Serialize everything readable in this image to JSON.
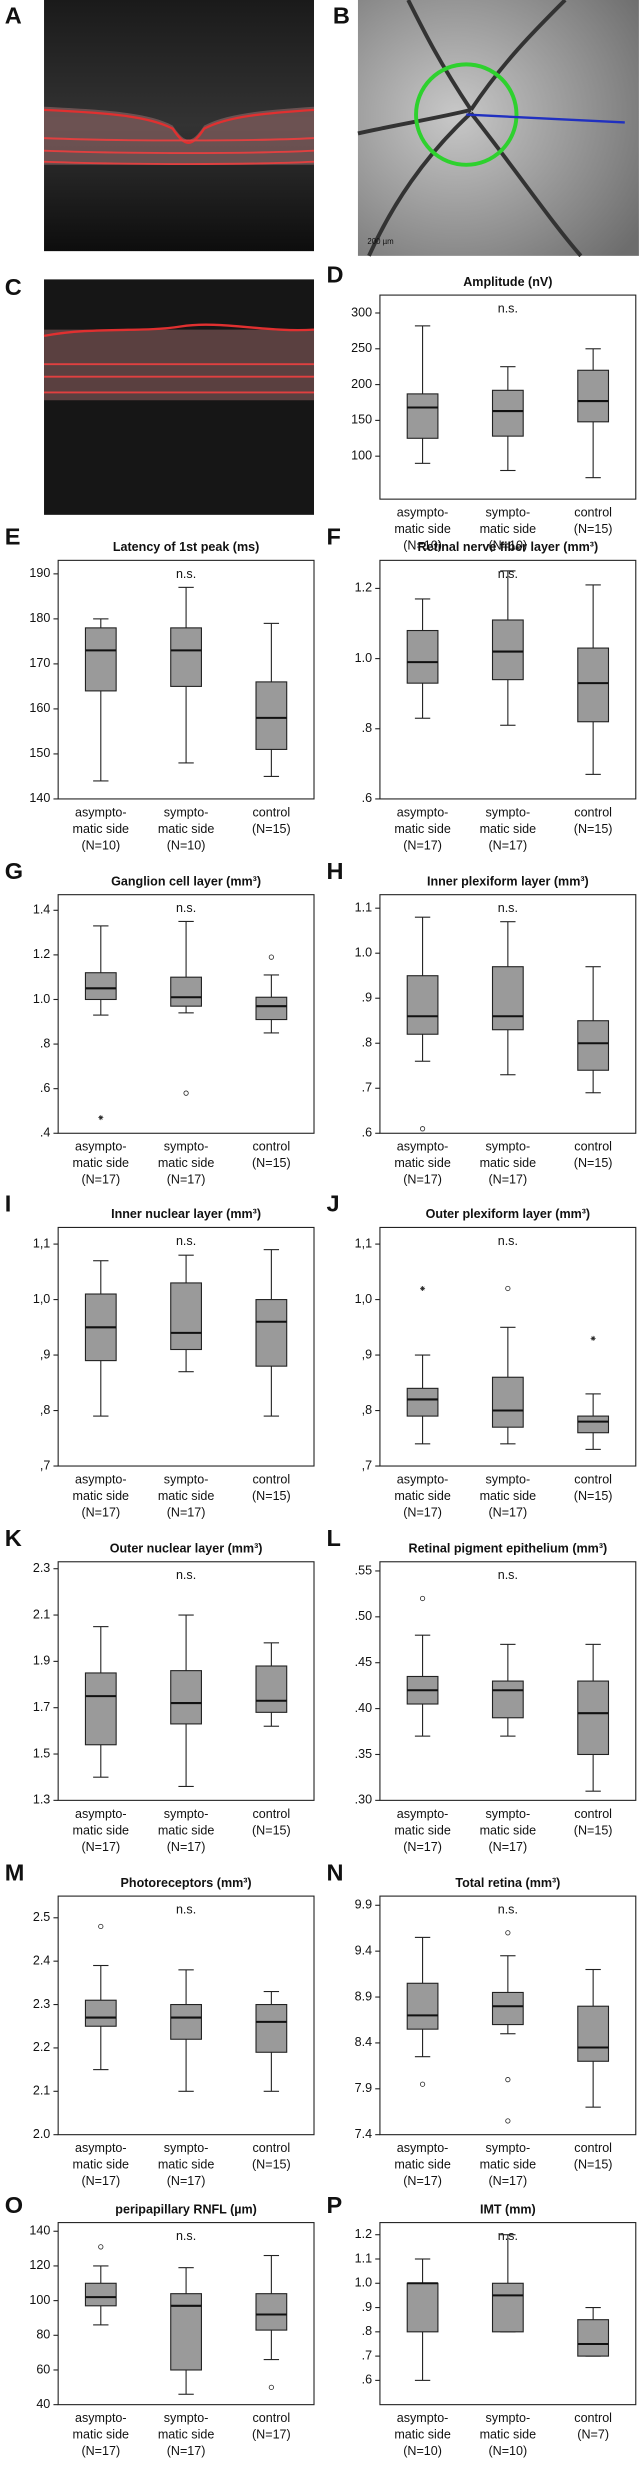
{
  "images": [
    {
      "label": "A"
    },
    {
      "label": "B",
      "scale_label": "200 µm"
    },
    {
      "label": "C"
    }
  ],
  "chart_data": [
    {
      "type": "box",
      "panel_label": "D",
      "title": "Amplitude (nV)",
      "annotation": "n.s.",
      "color": "#9a9a9a",
      "ylim": [
        40,
        325
      ],
      "yticks": [
        100,
        150,
        200,
        250,
        300
      ],
      "categories": [
        [
          "asympto-",
          "matic side",
          "(N=10)"
        ],
        [
          "sympto-",
          "matic side",
          "(N=10)"
        ],
        [
          "control",
          "(N=15)"
        ]
      ],
      "boxes": [
        {
          "whisker_low": 90,
          "q1": 125,
          "median": 168,
          "q3": 187,
          "whisker_high": 282,
          "outliers": []
        },
        {
          "whisker_low": 80,
          "q1": 128,
          "median": 163,
          "q3": 192,
          "whisker_high": 225,
          "outliers": []
        },
        {
          "whisker_low": 70,
          "q1": 148,
          "median": 177,
          "q3": 220,
          "whisker_high": 250,
          "outliers": []
        }
      ]
    },
    {
      "type": "box",
      "panel_label": "E",
      "title": "Latency of 1st peak (ms)",
      "annotation": "n.s.",
      "color": "#9a9a9a",
      "ylim": [
        140,
        193
      ],
      "yticks": [
        140,
        150,
        160,
        170,
        180,
        190
      ],
      "categories": [
        [
          "asympto-",
          "matic side",
          "(N=10)"
        ],
        [
          "sympto-",
          "matic side",
          "(N=10)"
        ],
        [
          "control",
          "(N=15)"
        ]
      ],
      "boxes": [
        {
          "whisker_low": 144,
          "q1": 164,
          "median": 173,
          "q3": 178,
          "whisker_high": 180,
          "outliers": []
        },
        {
          "whisker_low": 148,
          "q1": 165,
          "median": 173,
          "q3": 178,
          "whisker_high": 187,
          "outliers": []
        },
        {
          "whisker_low": 145,
          "q1": 151,
          "median": 158,
          "q3": 166,
          "whisker_high": 179,
          "outliers": []
        }
      ]
    },
    {
      "type": "box",
      "panel_label": "F",
      "title": "Retinal nerve fiber layer (mm³)",
      "annotation": "n.s.",
      "color": "#9a9a9a",
      "ylim": [
        0.6,
        1.28
      ],
      "yticks": [
        {
          "value": 0.6,
          "label": ".6"
        },
        {
          "value": 0.8,
          "label": ".8"
        },
        {
          "value": 1.0,
          "label": "1.0"
        },
        {
          "value": 1.2,
          "label": "1.2"
        }
      ],
      "categories": [
        [
          "asympto-",
          "matic side",
          "(N=17)"
        ],
        [
          "sympto-",
          "matic side",
          "(N=17)"
        ],
        [
          "control",
          "(N=15)"
        ]
      ],
      "boxes": [
        {
          "whisker_low": 0.83,
          "q1": 0.93,
          "median": 0.99,
          "q3": 1.08,
          "whisker_high": 1.17,
          "outliers": []
        },
        {
          "whisker_low": 0.81,
          "q1": 0.94,
          "median": 1.02,
          "q3": 1.11,
          "whisker_high": 1.25,
          "outliers": []
        },
        {
          "whisker_low": 0.67,
          "q1": 0.82,
          "median": 0.93,
          "q3": 1.03,
          "whisker_high": 1.21,
          "outliers": []
        }
      ]
    },
    {
      "type": "box",
      "panel_label": "G",
      "title": "Ganglion cell layer (mm³)",
      "annotation": "n.s.",
      "color": "#9a9a9a",
      "ylim": [
        0.4,
        1.47
      ],
      "yticks": [
        {
          "value": 0.4,
          "label": ".4"
        },
        {
          "value": 0.6,
          "label": ".6"
        },
        {
          "value": 0.8,
          "label": ".8"
        },
        {
          "value": 1.0,
          "label": "1.0"
        },
        {
          "value": 1.2,
          "label": "1.2"
        },
        {
          "value": 1.4,
          "label": "1.4"
        }
      ],
      "categories": [
        [
          "asympto-",
          "matic side",
          "(N=17)"
        ],
        [
          "sympto-",
          "matic side",
          "(N=17)"
        ],
        [
          "control",
          "(N=15)"
        ]
      ],
      "boxes": [
        {
          "whisker_low": 0.93,
          "q1": 1.0,
          "median": 1.05,
          "q3": 1.12,
          "whisker_high": 1.33,
          "outliers": [
            {
              "value": 0.47,
              "marker": "star"
            }
          ]
        },
        {
          "whisker_low": 0.94,
          "q1": 0.97,
          "median": 1.01,
          "q3": 1.1,
          "whisker_high": 1.35,
          "outliers": [
            {
              "value": 0.58,
              "marker": "circle"
            }
          ]
        },
        {
          "whisker_low": 0.85,
          "q1": 0.91,
          "median": 0.97,
          "q3": 1.01,
          "whisker_high": 1.11,
          "outliers": [
            {
              "value": 1.19,
              "marker": "circle"
            }
          ]
        }
      ]
    },
    {
      "type": "box",
      "panel_label": "H",
      "title": "Inner plexiform layer (mm³)",
      "annotation": "n.s.",
      "color": "#9a9a9a",
      "ylim": [
        0.6,
        1.13
      ],
      "yticks": [
        {
          "value": 0.6,
          "label": ".6"
        },
        {
          "value": 0.7,
          "label": ".7"
        },
        {
          "value": 0.8,
          "label": ".8"
        },
        {
          "value": 0.9,
          "label": ".9"
        },
        {
          "value": 1.0,
          "label": "1.0"
        },
        {
          "value": 1.1,
          "label": "1.1"
        }
      ],
      "categories": [
        [
          "asympto-",
          "matic side",
          "(N=17)"
        ],
        [
          "sympto-",
          "matic side",
          "(N=17)"
        ],
        [
          "control",
          "(N=15)"
        ]
      ],
      "boxes": [
        {
          "whisker_low": 0.76,
          "q1": 0.82,
          "median": 0.86,
          "q3": 0.95,
          "whisker_high": 1.08,
          "outliers": [
            {
              "value": 0.61,
              "marker": "circle"
            }
          ]
        },
        {
          "whisker_low": 0.73,
          "q1": 0.83,
          "median": 0.86,
          "q3": 0.97,
          "whisker_high": 1.07,
          "outliers": []
        },
        {
          "whisker_low": 0.69,
          "q1": 0.74,
          "median": 0.8,
          "q3": 0.85,
          "whisker_high": 0.97,
          "outliers": []
        }
      ]
    },
    {
      "type": "box",
      "panel_label": "I",
      "title": "Inner nuclear layer (mm³)",
      "annotation": "n.s.",
      "color": "#9a9a9a",
      "ylim": [
        0.7,
        1.13
      ],
      "yticks": [
        {
          "value": 0.7,
          "label": ",7"
        },
        {
          "value": 0.8,
          "label": ",8"
        },
        {
          "value": 0.9,
          "label": ",9"
        },
        {
          "value": 1.0,
          "label": "1,0"
        },
        {
          "value": 1.1,
          "label": "1,1"
        }
      ],
      "categories": [
        [
          "asympto-",
          "matic side",
          "(N=17)"
        ],
        [
          "sympto-",
          "matic side",
          "(N=17)"
        ],
        [
          "control",
          "(N=15)"
        ]
      ],
      "boxes": [
        {
          "whisker_low": 0.79,
          "q1": 0.89,
          "median": 0.95,
          "q3": 1.01,
          "whisker_high": 1.07,
          "outliers": []
        },
        {
          "whisker_low": 0.87,
          "q1": 0.91,
          "median": 0.94,
          "q3": 1.03,
          "whisker_high": 1.08,
          "outliers": []
        },
        {
          "whisker_low": 0.79,
          "q1": 0.88,
          "median": 0.96,
          "q3": 1.0,
          "whisker_high": 1.09,
          "outliers": []
        }
      ]
    },
    {
      "type": "box",
      "panel_label": "J",
      "title": "Outer plexiform layer (mm³)",
      "annotation": "n.s.",
      "color": "#9a9a9a",
      "ylim": [
        0.7,
        1.13
      ],
      "yticks": [
        {
          "value": 0.7,
          "label": ",7"
        },
        {
          "value": 0.8,
          "label": ",8"
        },
        {
          "value": 0.9,
          "label": ",9"
        },
        {
          "value": 1.0,
          "label": "1,0"
        },
        {
          "value": 1.1,
          "label": "1,1"
        }
      ],
      "categories": [
        [
          "asympto-",
          "matic side",
          "(N=17)"
        ],
        [
          "sympto-",
          "matic side",
          "(N=17)"
        ],
        [
          "control",
          "(N=15)"
        ]
      ],
      "boxes": [
        {
          "whisker_low": 0.74,
          "q1": 0.79,
          "median": 0.82,
          "q3": 0.84,
          "whisker_high": 0.9,
          "outliers": [
            {
              "value": 1.02,
              "marker": "star"
            }
          ]
        },
        {
          "whisker_low": 0.74,
          "q1": 0.77,
          "median": 0.8,
          "q3": 0.86,
          "whisker_high": 0.95,
          "outliers": [
            {
              "value": 1.02,
              "marker": "circle"
            }
          ]
        },
        {
          "whisker_low": 0.73,
          "q1": 0.76,
          "median": 0.78,
          "q3": 0.79,
          "whisker_high": 0.83,
          "outliers": [
            {
              "value": 0.93,
              "marker": "star"
            }
          ]
        }
      ]
    },
    {
      "type": "box",
      "panel_label": "K",
      "title": "Outer nuclear layer (mm³)",
      "annotation": "n.s.",
      "color": "#9a9a9a",
      "ylim": [
        1.3,
        2.33
      ],
      "yticks": [
        1.3,
        1.5,
        1.7,
        1.9,
        2.1,
        2.3
      ],
      "categories": [
        [
          "asympto-",
          "matic side",
          "(N=17)"
        ],
        [
          "sympto-",
          "matic side",
          "(N=17)"
        ],
        [
          "control",
          "(N=15)"
        ]
      ],
      "boxes": [
        {
          "whisker_low": 1.4,
          "q1": 1.54,
          "median": 1.75,
          "q3": 1.85,
          "whisker_high": 2.05,
          "outliers": []
        },
        {
          "whisker_low": 1.36,
          "q1": 1.63,
          "median": 1.72,
          "q3": 1.86,
          "whisker_high": 2.1,
          "outliers": []
        },
        {
          "whisker_low": 1.62,
          "q1": 1.68,
          "median": 1.73,
          "q3": 1.88,
          "whisker_high": 1.98,
          "outliers": []
        }
      ]
    },
    {
      "type": "box",
      "panel_label": "L",
      "title": "Retinal pigment epithelium (mm³)",
      "annotation": "n.s.",
      "color": "#9a9a9a",
      "ylim": [
        0.3,
        0.56
      ],
      "yticks": [
        {
          "value": 0.3,
          "label": ".30"
        },
        {
          "value": 0.35,
          "label": ".35"
        },
        {
          "value": 0.4,
          "label": ".40"
        },
        {
          "value": 0.45,
          "label": ".45"
        },
        {
          "value": 0.5,
          "label": ".50"
        },
        {
          "value": 0.55,
          "label": ".55"
        }
      ],
      "categories": [
        [
          "asympto-",
          "matic side",
          "(N=17)"
        ],
        [
          "sympto-",
          "matic side",
          "(N=17)"
        ],
        [
          "control",
          "(N=15)"
        ]
      ],
      "boxes": [
        {
          "whisker_low": 0.37,
          "q1": 0.405,
          "median": 0.42,
          "q3": 0.435,
          "whisker_high": 0.48,
          "outliers": [
            {
              "value": 0.52,
              "marker": "circle"
            }
          ]
        },
        {
          "whisker_low": 0.37,
          "q1": 0.39,
          "median": 0.42,
          "q3": 0.43,
          "whisker_high": 0.47,
          "outliers": []
        },
        {
          "whisker_low": 0.31,
          "q1": 0.35,
          "median": 0.395,
          "q3": 0.43,
          "whisker_high": 0.47,
          "outliers": []
        }
      ]
    },
    {
      "type": "box",
      "panel_label": "M",
      "title": "Photoreceptors (mm³)",
      "annotation": "n.s.",
      "color": "#9a9a9a",
      "ylim": [
        2.0,
        2.55
      ],
      "yticks": [
        {
          "value": 2.0,
          "label": "2.0"
        },
        2.1,
        2.2,
        2.3,
        2.4,
        2.5
      ],
      "categories": [
        [
          "asympto-",
          "matic side",
          "(N=17)"
        ],
        [
          "sympto-",
          "matic side",
          "(N=17)"
        ],
        [
          "control",
          "(N=15)"
        ]
      ],
      "boxes": [
        {
          "whisker_low": 2.15,
          "q1": 2.25,
          "median": 2.27,
          "q3": 2.31,
          "whisker_high": 2.39,
          "outliers": [
            {
              "value": 2.48,
              "marker": "circle"
            }
          ]
        },
        {
          "whisker_low": 2.1,
          "q1": 2.22,
          "median": 2.27,
          "q3": 2.3,
          "whisker_high": 2.38,
          "outliers": []
        },
        {
          "whisker_low": 2.1,
          "q1": 2.19,
          "median": 2.26,
          "q3": 2.3,
          "whisker_high": 2.33,
          "outliers": []
        }
      ]
    },
    {
      "type": "box",
      "panel_label": "N",
      "title": "Total retina (mm³)",
      "annotation": "n.s.",
      "color": "#9a9a9a",
      "ylim": [
        7.4,
        10.0
      ],
      "yticks": [
        7.4,
        7.9,
        8.4,
        8.9,
        9.4,
        9.9
      ],
      "categories": [
        [
          "asympto-",
          "matic side",
          "(N=17)"
        ],
        [
          "sympto-",
          "matic side",
          "(N=17)"
        ],
        [
          "control",
          "(N=15)"
        ]
      ],
      "boxes": [
        {
          "whisker_low": 8.25,
          "q1": 8.55,
          "median": 8.7,
          "q3": 9.05,
          "whisker_high": 9.55,
          "outliers": [
            {
              "value": 7.95,
              "marker": "circle"
            }
          ]
        },
        {
          "whisker_low": 8.5,
          "q1": 8.6,
          "median": 8.8,
          "q3": 8.95,
          "whisker_high": 9.35,
          "outliers": [
            {
              "value": 9.6,
              "marker": "circle"
            },
            {
              "value": 8.0,
              "marker": "circle"
            },
            {
              "value": 7.55,
              "marker": "circle"
            }
          ]
        },
        {
          "whisker_low": 7.7,
          "q1": 8.2,
          "median": 8.35,
          "q3": 8.8,
          "whisker_high": 9.2,
          "outliers": []
        }
      ]
    },
    {
      "type": "box",
      "panel_label": "O",
      "title": "peripapillary RNFL (µm)",
      "annotation": "n.s.",
      "color": "#9a9a9a",
      "ylim": [
        40,
        145
      ],
      "yticks": [
        40,
        60,
        80,
        100,
        120,
        140
      ],
      "categories": [
        [
          "asympto-",
          "matic side",
          "(N=17)"
        ],
        [
          "sympto-",
          "matic side",
          "(N=17)"
        ],
        [
          "control",
          "(N=17)"
        ]
      ],
      "boxes": [
        {
          "whisker_low": 86,
          "q1": 97,
          "median": 102,
          "q3": 110,
          "whisker_high": 120,
          "outliers": [
            {
              "value": 131,
              "marker": "circle"
            }
          ]
        },
        {
          "whisker_low": 46,
          "q1": 60,
          "median": 97,
          "q3": 104,
          "whisker_high": 119,
          "outliers": []
        },
        {
          "whisker_low": 66,
          "q1": 83,
          "median": 92,
          "q3": 104,
          "whisker_high": 126,
          "outliers": [
            {
              "value": 50,
              "marker": "circle"
            }
          ]
        }
      ]
    },
    {
      "type": "box",
      "panel_label": "P",
      "title": "IMT (mm)",
      "annotation": "n.s.",
      "color": "#9a9a9a",
      "ylim": [
        0.5,
        1.25
      ],
      "yticks": [
        {
          "value": 0.6,
          "label": ".6"
        },
        {
          "value": 0.7,
          "label": ".7"
        },
        {
          "value": 0.8,
          "label": ".8"
        },
        {
          "value": 0.9,
          "label": ".9"
        },
        {
          "value": 1.0,
          "label": "1.0"
        },
        {
          "value": 1.1,
          "label": "1.1"
        },
        {
          "value": 1.2,
          "label": "1.2"
        }
      ],
      "categories": [
        [
          "asympto-",
          "matic side",
          "(N=10)"
        ],
        [
          "sympto-",
          "matic side",
          "(N=10)"
        ],
        [
          "control",
          "(N=7)"
        ]
      ],
      "boxes": [
        {
          "whisker_low": 0.6,
          "q1": 0.8,
          "median": 1.0,
          "q3": 1.0,
          "whisker_high": 1.1,
          "outliers": []
        },
        {
          "whisker_low": 0.8,
          "q1": 0.8,
          "median": 0.95,
          "q3": 1.0,
          "whisker_high": 1.2,
          "outliers": []
        },
        {
          "whisker_low": 0.7,
          "q1": 0.7,
          "median": 0.75,
          "q3": 0.85,
          "whisker_high": 0.9,
          "outliers": []
        }
      ]
    }
  ]
}
